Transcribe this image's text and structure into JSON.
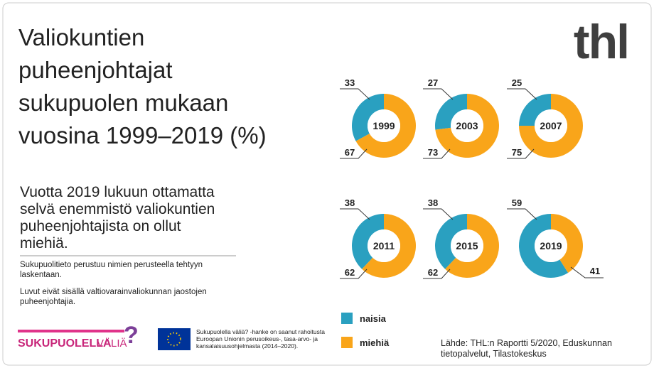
{
  "title": [
    "Valiokuntien",
    "puheenjohtajat",
    "sukupuolen mukaan",
    "vuosina 1999–2019 (%)"
  ],
  "lead": [
    "Vuotta 2019 lukuun ottamatta",
    "selvä enemmistö valiokuntien",
    "puheenjohtajista on ollut",
    "miehiä."
  ],
  "notes": [
    [
      "Sukupuolitieto perustuu nimien perusteella tehtyyn",
      "laskentaan."
    ],
    [
      "Luvut eivät sisällä valtiovarainvaliokunnan jaostojen",
      "puheenjohtajia."
    ]
  ],
  "logo": "thl",
  "project_logo": {
    "bold": "SUKUPUOLELLA",
    "light": "VÄLIÄ"
  },
  "eu_text": [
    "Sukupuolella väliä? -hanke on saanut rahoitusta",
    "Euroopan Unionin perusoikeus-, tasa-arvo- ja",
    "kansalaisuusohjelmasta (2014–2020)."
  ],
  "legend": {
    "names": [
      "naisia",
      "miehiä"
    ],
    "colors": [
      "#2aa0c0",
      "#f9a51a"
    ]
  },
  "source": [
    "Lähde: THL:n Raportti 5/2020, Eduskunnan",
    "tietopalvelut, Tilastokeskus"
  ],
  "chart_data": [
    {
      "type": "donut",
      "title": "1999",
      "values": [
        33,
        67
      ]
    },
    {
      "type": "donut",
      "title": "2003",
      "values": [
        27,
        73
      ]
    },
    {
      "type": "donut",
      "title": "2007",
      "values": [
        25,
        75
      ]
    },
    {
      "type": "donut",
      "title": "2011",
      "values": [
        38,
        62
      ]
    },
    {
      "type": "donut",
      "title": "2015",
      "values": [
        38,
        62
      ]
    },
    {
      "type": "donut",
      "title": "2019",
      "values": [
        59,
        41
      ]
    }
  ]
}
